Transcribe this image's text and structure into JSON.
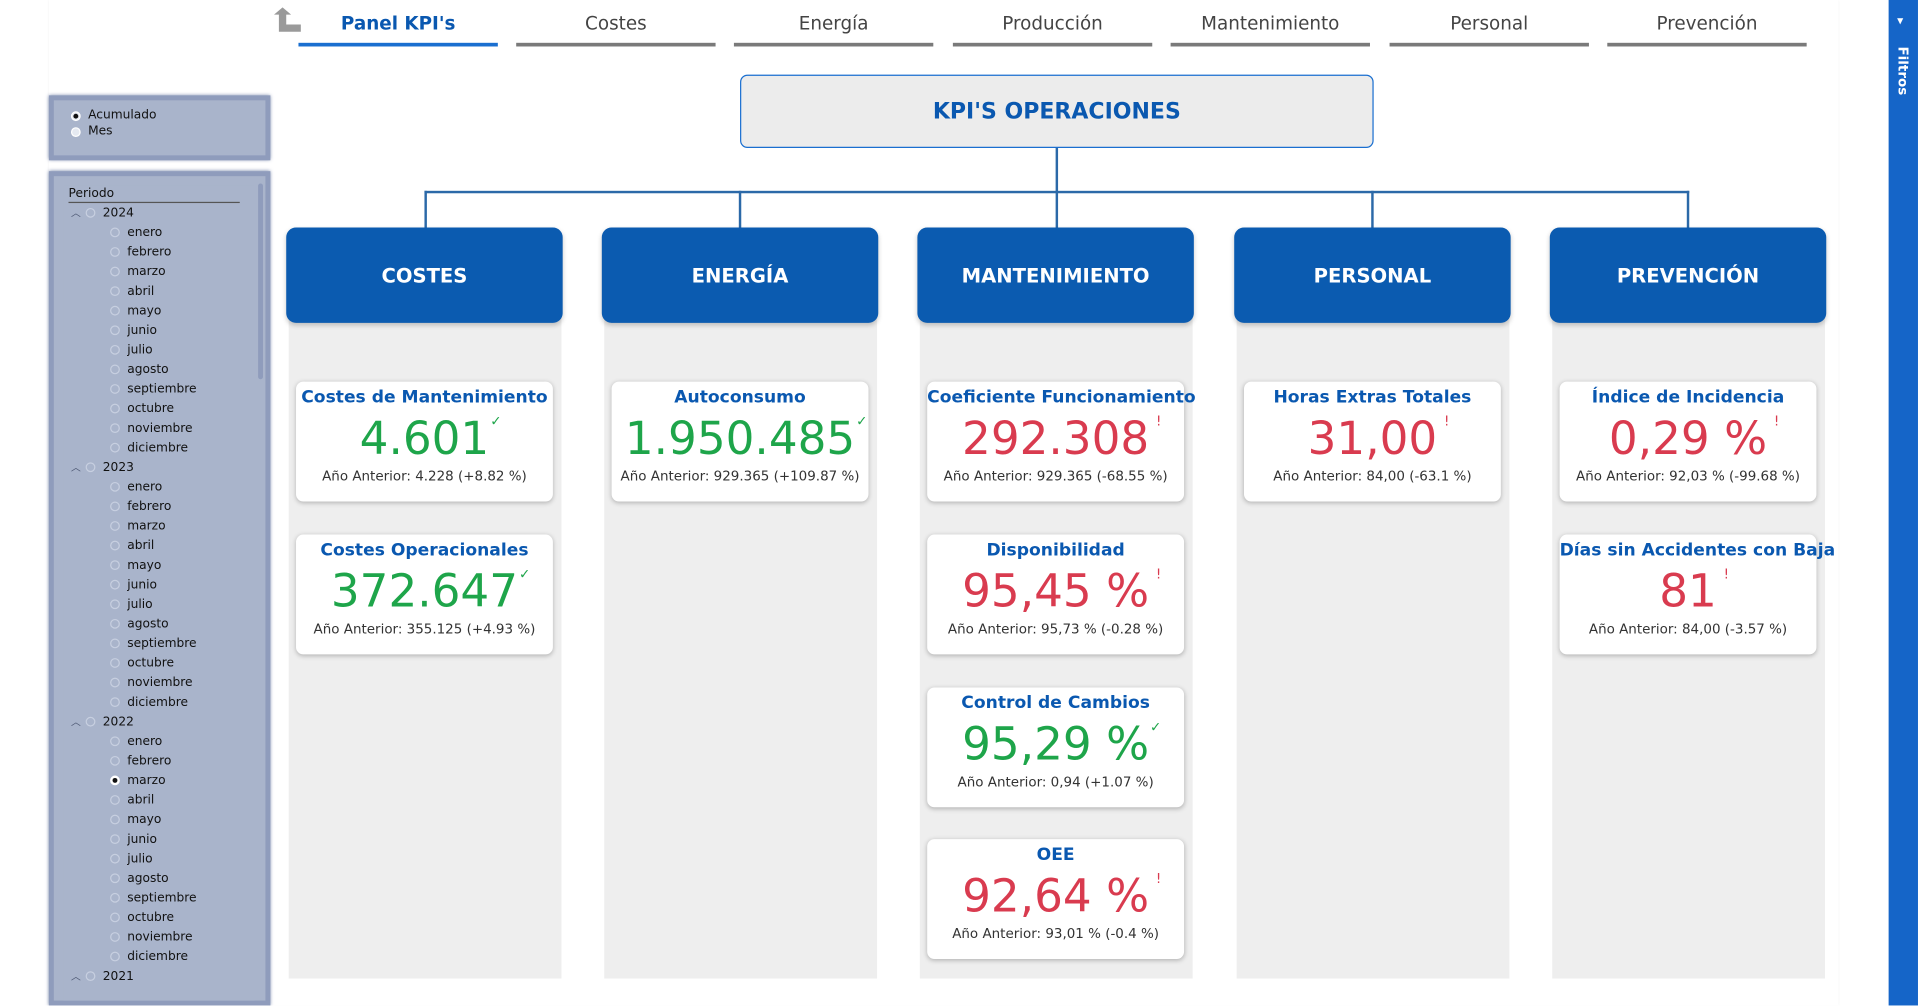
{
  "nav": {
    "back_icon": "back-arrow-icon",
    "tabs": [
      {
        "label": "Panel KPI's",
        "active": true
      },
      {
        "label": "Costes"
      },
      {
        "label": "Energía"
      },
      {
        "label": "Producción"
      },
      {
        "label": "Mantenimiento"
      },
      {
        "label": "Personal"
      },
      {
        "label": "Prevención"
      }
    ]
  },
  "toggle": {
    "options": [
      {
        "label": "Acumulado",
        "selected": true
      },
      {
        "label": "Mes",
        "selected": false
      }
    ]
  },
  "slicer": {
    "title": "Periodo",
    "years": [
      {
        "year": "2024",
        "months": [
          "enero",
          "febrero",
          "marzo",
          "abril",
          "mayo",
          "junio",
          "julio",
          "agosto",
          "septiembre",
          "octubre",
          "noviembre",
          "diciembre"
        ]
      },
      {
        "year": "2023",
        "months": [
          "enero",
          "febrero",
          "marzo",
          "abril",
          "mayo",
          "junio",
          "julio",
          "agosto",
          "septiembre",
          "octubre",
          "noviembre",
          "diciembre"
        ]
      },
      {
        "year": "2022",
        "months": [
          "enero",
          "febrero",
          "marzo",
          "abril",
          "mayo",
          "junio",
          "julio",
          "agosto",
          "septiembre",
          "octubre",
          "noviembre",
          "diciembre"
        ],
        "selected_month": "marzo"
      },
      {
        "year": "2021",
        "months": []
      }
    ]
  },
  "filters_pane": {
    "label": "Filtros",
    "icon": "filter-icon"
  },
  "org": {
    "root": "KPI'S OPERACIONES",
    "columns": [
      {
        "title": "COSTES",
        "cards": [
          {
            "title": "Costes de Mantenimiento",
            "value": "4.601",
            "status": "ok",
            "sub": "Año Anterior: 4.228 (+8.82 %)"
          },
          {
            "title": "Costes Operacionales",
            "value": "372.647",
            "status": "ok",
            "sub": "Año Anterior: 355.125 (+4.93 %)"
          }
        ]
      },
      {
        "title": "ENERGÍA",
        "cards": [
          {
            "title": "Autoconsumo",
            "value": "1.950.485",
            "status": "ok",
            "sub": "Año Anterior: 929.365 (+109.87 %)"
          }
        ]
      },
      {
        "title": "MANTENIMIENTO",
        "cards": [
          {
            "title": "Coeficiente Funcionamiento",
            "value": "292.308",
            "status": "bad",
            "sub": "Año Anterior: 929.365 (-68.55 %)"
          },
          {
            "title": "Disponibilidad",
            "value": "95,45 %",
            "status": "bad",
            "sub": "Año Anterior: 95,73 % (-0.28 %)"
          },
          {
            "title": "Control de Cambios",
            "value": "95,29 %",
            "status": "ok",
            "sub": "Año Anterior: 0,94 (+1.07 %)"
          },
          {
            "title": "OEE",
            "value": "92,64 %",
            "status": "bad",
            "sub": "Año Anterior: 93,01 % (-0.4 %)"
          }
        ]
      },
      {
        "title": "PERSONAL",
        "cards": [
          {
            "title": "Horas Extras Totales",
            "value": "31,00",
            "status": "bad",
            "sub": "Año Anterior: 84,00 (-63.1 %)"
          }
        ]
      },
      {
        "title": "PREVENCIÓN",
        "cards": [
          {
            "title": "Índice de Incidencia",
            "value": "0,29 %",
            "status": "bad",
            "sub": "Año Anterior: 92,03 % (-99.68 %)"
          },
          {
            "title": "Días sin Accidentes con Baja",
            "value": "81",
            "status": "bad",
            "sub": "Año Anterior: 84,00 (-3.57 %)"
          }
        ]
      }
    ],
    "status_marks": {
      "ok": "✓",
      "bad": "!"
    },
    "colors": {
      "primary": "#0b5bb0",
      "ok": "#1ea54a",
      "bad": "#d93b4f"
    }
  }
}
